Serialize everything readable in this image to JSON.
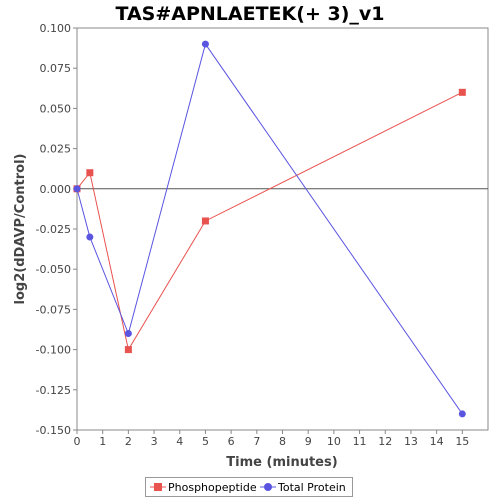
{
  "chart_data": {
    "type": "line",
    "title": "TAS#APNLAETEK(+ 3)_v1",
    "xlabel": "Time (minutes)",
    "ylabel": "log2(dDAVP/Control)",
    "xlim": [
      0,
      16
    ],
    "ylim": [
      -0.15,
      0.1
    ],
    "x_ticks": [
      "0",
      "1",
      "2",
      "3",
      "4",
      "5",
      "6",
      "7",
      "8",
      "9",
      "10",
      "11",
      "12",
      "13",
      "14",
      "15"
    ],
    "y_ticks": [
      "0.100",
      "0.075",
      "0.050",
      "0.025",
      "0.000",
      "-0.025",
      "-0.050",
      "-0.075",
      "-0.100",
      "-0.125",
      "-0.150"
    ],
    "y_tick_values": [
      0.1,
      0.075,
      0.05,
      0.025,
      0.0,
      -0.025,
      -0.05,
      -0.075,
      -0.1,
      -0.125,
      -0.15
    ],
    "zero_line": true,
    "legend_position": "bottom",
    "series": [
      {
        "name": "Phosphopeptide",
        "marker": "square",
        "color": "#e8524f",
        "x": [
          0,
          0.5,
          2,
          5,
          15
        ],
        "y": [
          0.0,
          0.01,
          -0.1,
          -0.02,
          0.06
        ]
      },
      {
        "name": "Total Protein",
        "marker": "circle",
        "color": "#5a55e0",
        "x": [
          0,
          0.5,
          2,
          5,
          15
        ],
        "y": [
          0.0,
          -0.03,
          -0.09,
          0.09,
          -0.14
        ]
      }
    ]
  }
}
